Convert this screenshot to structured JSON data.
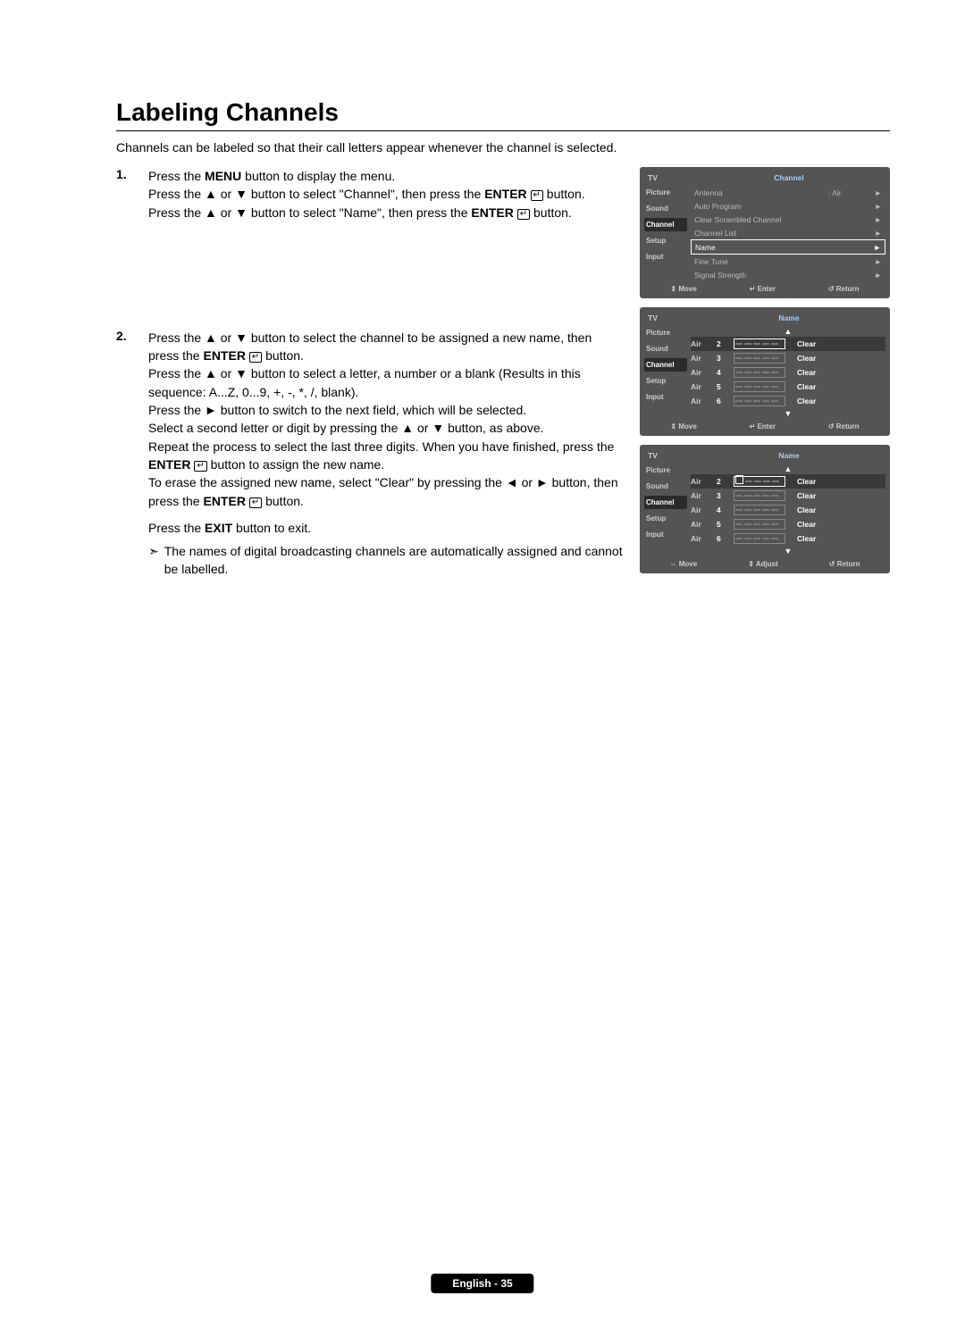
{
  "title": "Labeling Channels",
  "intro": "Channels can be labeled so that their call letters appear whenever the channel is selected.",
  "steps": {
    "s1": {
      "num": "1.",
      "l1a": "Press the ",
      "l1b": "MENU",
      "l1c": " button to display the menu.",
      "l2a": "Press the ▲ or ▼ button to select \"Channel\", then press the ",
      "l2b": "ENTER",
      "l2c": " button.",
      "l3a": "Press the ▲ or ▼ button to select \"Name\", then press the ",
      "l3b": "ENTER",
      "l3c": " button."
    },
    "s2": {
      "num": "2.",
      "p1a": "Press the ▲ or ▼ button to select the channel to be assigned a new name, then press the ",
      "p1b": "ENTER",
      "p1c": " button.",
      "p2": "Press the ▲ or ▼ button to select a letter, a number or a blank (Results in this sequence: A...Z, 0...9, +, -, *, /, blank).",
      "p3": "Press the ► button to switch to the next field, which will be selected.",
      "p4": "Select a second letter or digit by pressing the ▲ or ▼ button, as above.",
      "p5a": "Repeat the process to select the last three digits. When you have finished, press the ",
      "p5b": "ENTER",
      "p5c": " button to assign the new name.",
      "p6a": "To erase the assigned new name, select \"Clear\" by pressing the ◄ or ► button, then press the ",
      "p6b": "ENTER",
      "p6c": " button.",
      "exitA": "Press the ",
      "exitB": "EXIT",
      "exitC": " button to exit.",
      "note": "The names of digital broadcasting channels are automatically assigned and cannot be labelled."
    }
  },
  "osd": {
    "tv": "TV",
    "side": [
      "Picture",
      "Sound",
      "Channel",
      "Setup",
      "Input"
    ],
    "channel": {
      "title": "Channel",
      "items": [
        {
          "label": "Antenna",
          "val": ": Air"
        },
        {
          "label": "Auto Program",
          "val": ""
        },
        {
          "label": "Clear Scrambled Channel",
          "val": ""
        },
        {
          "label": "Channel List",
          "val": ""
        },
        {
          "label": "Name",
          "val": "",
          "sel": true
        },
        {
          "label": "Fine Tune",
          "val": ""
        },
        {
          "label": "Signal Strength",
          "val": ""
        }
      ],
      "footer": {
        "a": "Move",
        "b": "Enter",
        "c": "Return",
        "ia": "⇕",
        "ib": "↵",
        "ic": "↺"
      }
    },
    "name1": {
      "title": "Name",
      "rows": [
        {
          "air": "Air",
          "n": "2",
          "sel": true
        },
        {
          "air": "Air",
          "n": "3"
        },
        {
          "air": "Air",
          "n": "4"
        },
        {
          "air": "Air",
          "n": "5"
        },
        {
          "air": "Air",
          "n": "6"
        }
      ],
      "clear": "Clear",
      "footer": {
        "a": "Move",
        "b": "Enter",
        "c": "Return",
        "ia": "⇕",
        "ib": "↵",
        "ic": "↺"
      }
    },
    "name2": {
      "title": "Name",
      "rows": [
        {
          "air": "Air",
          "n": "2",
          "sel": true,
          "cursor": true
        },
        {
          "air": "Air",
          "n": "3"
        },
        {
          "air": "Air",
          "n": "4"
        },
        {
          "air": "Air",
          "n": "5"
        },
        {
          "air": "Air",
          "n": "6"
        }
      ],
      "clear": "Clear",
      "footer": {
        "a": "Move",
        "b": "Adjust",
        "c": "Return",
        "ia": "⇔",
        "ib": "⇕",
        "ic": "↺"
      }
    }
  },
  "glyph": {
    "arrow": "►",
    "up": "▲",
    "down": "▼",
    "note": "➣",
    "enter": "↵"
  },
  "footer": "English - 35"
}
